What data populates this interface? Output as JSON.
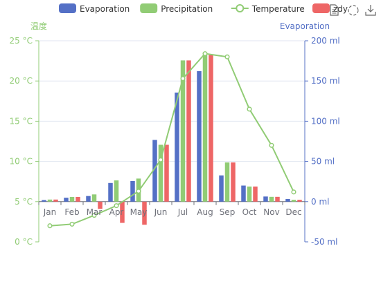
{
  "legend": {
    "items": [
      {
        "name": "Evaporation",
        "color": "#5470c6",
        "kind": "bar"
      },
      {
        "name": "Precipitation",
        "color": "#91cc75",
        "kind": "bar"
      },
      {
        "name": "Temperature",
        "color": "#91cc75",
        "kind": "line"
      },
      {
        "name": "zdy",
        "color": "#ee6666",
        "kind": "bar"
      }
    ]
  },
  "toolbox": [
    "data-view-icon",
    "restore-icon",
    "save-image-icon"
  ],
  "chart_data": {
    "type": "bar",
    "categories": [
      "Jan",
      "Feb",
      "Mar",
      "Apr",
      "May",
      "Jun",
      "Jul",
      "Aug",
      "Sep",
      "Oct",
      "Nov",
      "Dec"
    ],
    "series": [
      {
        "name": "Evaporation",
        "type": "bar",
        "axis": "right",
        "color": "#5470c6",
        "values": [
          2.0,
          4.9,
          7.0,
          23.2,
          25.6,
          76.7,
          135.6,
          162.2,
          32.6,
          20.0,
          6.4,
          3.3
        ]
      },
      {
        "name": "Precipitation",
        "type": "bar",
        "axis": "right",
        "color": "#91cc75",
        "values": [
          2.6,
          5.9,
          9.0,
          26.4,
          28.7,
          70.7,
          175.6,
          182.2,
          48.7,
          18.8,
          6.0,
          2.3
        ]
      },
      {
        "name": "zdy",
        "type": "bar",
        "axis": "right",
        "color": "#ee6666",
        "values": [
          2.6,
          5.9,
          -9.0,
          -26.4,
          -28.7,
          70.7,
          175.6,
          182.2,
          48.7,
          18.8,
          6.0,
          2.3
        ]
      },
      {
        "name": "Temperature",
        "type": "line",
        "axis": "left",
        "color": "#91cc75",
        "values": [
          2.0,
          2.2,
          3.3,
          4.5,
          6.3,
          10.2,
          20.3,
          23.4,
          23.0,
          16.5,
          12.0,
          6.2
        ]
      }
    ],
    "y_left": {
      "name": "温度",
      "min": 0,
      "max": 25,
      "interval": 5,
      "unit": " °C",
      "color": "#91cc75"
    },
    "y_right": {
      "name": "Evaporation",
      "min": -50,
      "max": 200,
      "interval": 50,
      "unit": " ml",
      "color": "#5470c6"
    },
    "legend_position": "top-right",
    "grid": true
  }
}
